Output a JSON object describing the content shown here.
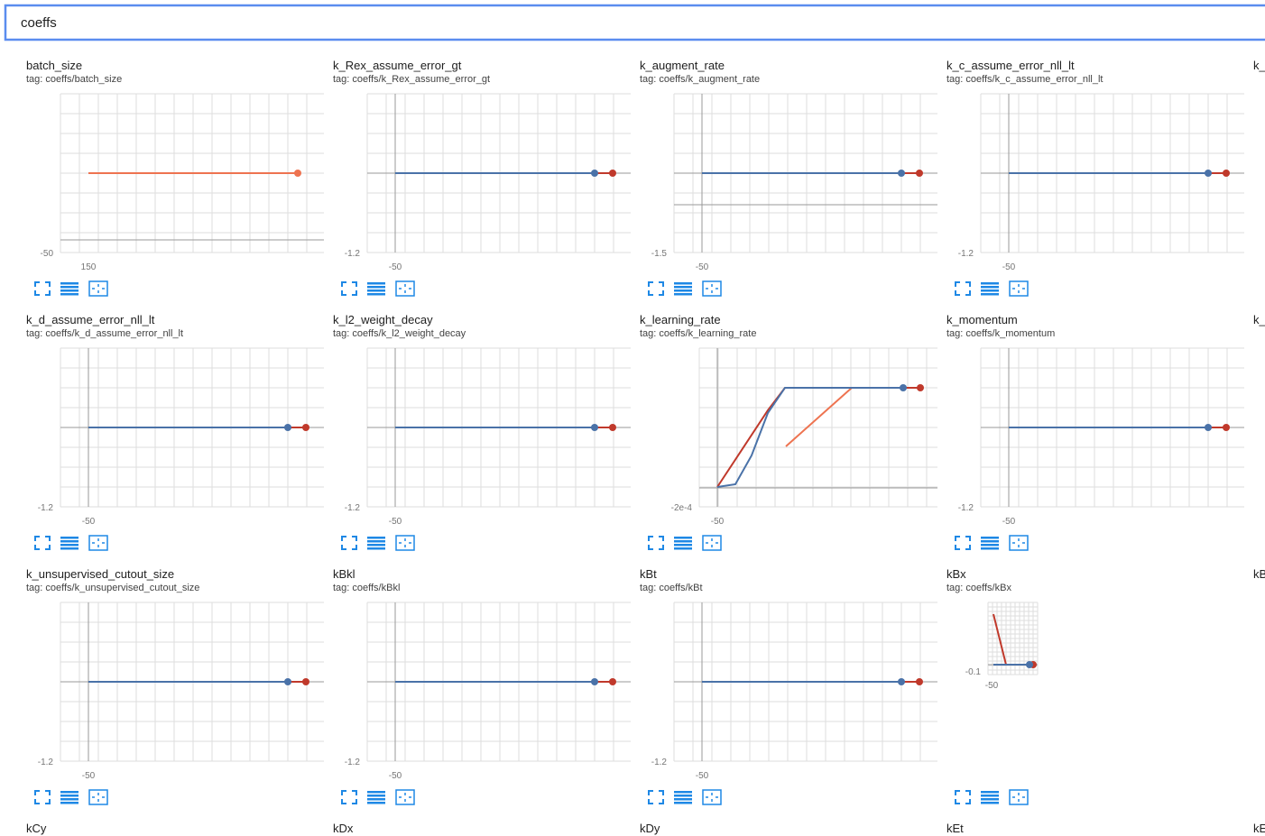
{
  "search": {
    "query": "coeffs"
  },
  "cards": [
    {
      "title": "batch_size",
      "tag": "tag: coeffs/batch_size",
      "y_tick": "-50",
      "x_tick": "150"
    },
    {
      "title": "k_Rex_assume_error_gt",
      "tag": "tag: coeffs/k_Rex_assume_error_gt",
      "y_tick": "-1.2",
      "x_tick": "-50"
    },
    {
      "title": "k_augment_rate",
      "tag": "tag: coeffs/k_augment_rate",
      "y_tick": "-1.5",
      "x_tick": "-50"
    },
    {
      "title": "k_c_assume_error_nll_lt",
      "tag": "tag: coeffs/k_c_assume_error_nll_lt",
      "y_tick": "-1.2",
      "x_tick": "-50"
    },
    {
      "title": "k_"
    },
    {
      "title": "k_d_assume_error_nll_lt",
      "tag": "tag: coeffs/k_d_assume_error_nll_lt",
      "y_tick": "-1.2",
      "x_tick": "-50"
    },
    {
      "title": "k_l2_weight_decay",
      "tag": "tag: coeffs/k_l2_weight_decay",
      "y_tick": "-1.2",
      "x_tick": "-50"
    },
    {
      "title": "k_learning_rate",
      "tag": "tag: coeffs/k_learning_rate",
      "y_tick": "-2e-4",
      "x_tick": "-50"
    },
    {
      "title": "k_momentum",
      "tag": "tag: coeffs/k_momentum",
      "y_tick": "-1.2",
      "x_tick": "-50"
    },
    {
      "title": "k_"
    },
    {
      "title": "k_unsupervised_cutout_size",
      "tag": "tag: coeffs/k_unsupervised_cutout_size",
      "y_tick": "-1.2",
      "x_tick": "-50"
    },
    {
      "title": "kBkl",
      "tag": "tag: coeffs/kBkl",
      "y_tick": "-1.2",
      "x_tick": "-50"
    },
    {
      "title": "kBt",
      "tag": "tag: coeffs/kBt",
      "y_tick": "-1.2",
      "x_tick": "-50"
    },
    {
      "title": "kBx",
      "tag": "tag: coeffs/kBx",
      "y_tick": "-0.1",
      "x_tick": "-50"
    },
    {
      "title": "kB"
    },
    {
      "title": "kCy"
    },
    {
      "title": "kDx"
    },
    {
      "title": "kDy"
    },
    {
      "title": "kEt"
    },
    {
      "title": "kE"
    }
  ]
}
